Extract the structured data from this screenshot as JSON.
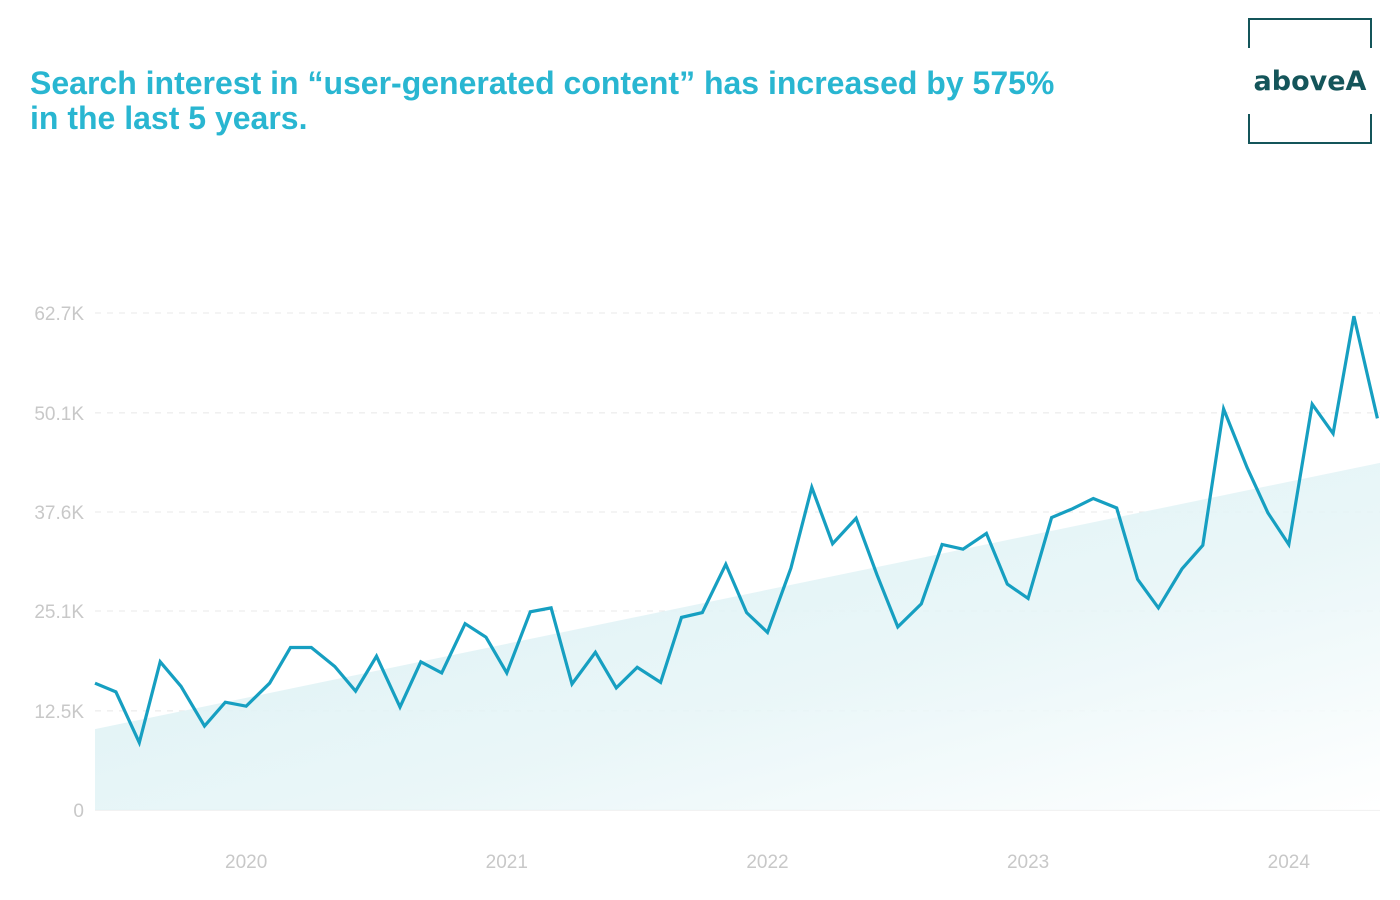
{
  "header": {
    "title_line1": "Search interest in “user-generated content” has increased by 575%",
    "title_line2": "in the last 5 years."
  },
  "brand": {
    "logo_text": "aboveA",
    "logo_color": "#14555a",
    "accent": "#29b6d1"
  },
  "chart_data": {
    "type": "line",
    "title": "Search interest in “user-generated content” has increased by 575% in the last 5 years.",
    "xlabel": "",
    "ylabel": "",
    "ylim": [
      0,
      62700
    ],
    "yticks": [
      0,
      12500,
      25100,
      37600,
      50100,
      62700
    ],
    "ytick_labels": [
      "0",
      "12.5K",
      "25.1K",
      "37.6K",
      "50.1K",
      "62.7K"
    ],
    "xticks": [
      2020,
      2021,
      2022,
      2023,
      2024
    ],
    "xtick_labels": [
      "2020",
      "2021",
      "2022",
      "2023",
      "2024"
    ],
    "xlim": [
      2019.42,
      2024.35
    ],
    "grid": true,
    "line_color": "#169fc1",
    "trend": {
      "start": 10200,
      "end": 43800
    },
    "series": [
      {
        "name": "Search interest",
        "x": [
          2019.42,
          2019.5,
          2019.59,
          2019.67,
          2019.75,
          2019.84,
          2019.92,
          2020.0,
          2020.09,
          2020.17,
          2020.25,
          2020.34,
          2020.42,
          2020.5,
          2020.59,
          2020.67,
          2020.75,
          2020.84,
          2020.92,
          2021.0,
          2021.09,
          2021.17,
          2021.25,
          2021.34,
          2021.42,
          2021.5,
          2021.59,
          2021.67,
          2021.75,
          2021.84,
          2021.92,
          2022.0,
          2022.09,
          2022.17,
          2022.25,
          2022.34,
          2022.42,
          2022.5,
          2022.59,
          2022.67,
          2022.75,
          2022.84,
          2022.92,
          2023.0,
          2023.09,
          2023.17,
          2023.25,
          2023.34,
          2023.42,
          2023.5,
          2023.59,
          2023.67,
          2023.75,
          2023.84,
          2023.92,
          2024.0,
          2024.09,
          2024.17,
          2024.25,
          2024.34
        ],
        "values": [
          16000,
          14900,
          8500,
          18700,
          15600,
          10600,
          13600,
          13100,
          16000,
          20500,
          20500,
          18100,
          15000,
          19400,
          13000,
          18700,
          17300,
          23500,
          21800,
          17300,
          25000,
          25500,
          15900,
          19900,
          15400,
          18000,
          16100,
          24300,
          24900,
          31000,
          24900,
          22400,
          30500,
          40700,
          33600,
          36800,
          29700,
          23100,
          26000,
          33500,
          32900,
          34900,
          28500,
          26700,
          36900,
          38000,
          39300,
          38100,
          29100,
          25500,
          30400,
          33400,
          50600,
          43200,
          37500,
          33500,
          51200,
          47500,
          62300,
          49400
        ]
      }
    ]
  }
}
